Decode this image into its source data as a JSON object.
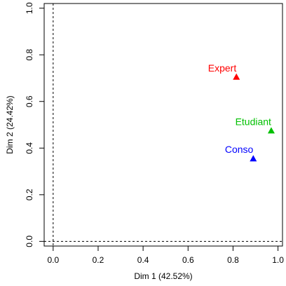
{
  "chart_data": {
    "type": "scatter",
    "title": "",
    "xlabel": "Dim 1 (42.52%)",
    "ylabel": "Dim 2 (24.42%)",
    "xlim": [
      -0.04,
      1.02
    ],
    "ylim": [
      -0.02,
      1.02
    ],
    "xticks": [
      0.0,
      0.2,
      0.4,
      0.6,
      0.8,
      1.0
    ],
    "yticks": [
      0.0,
      0.2,
      0.4,
      0.6,
      0.8,
      1.0
    ],
    "reference_lines": {
      "x": 0,
      "y": 0,
      "style": "dashed"
    },
    "grid": false,
    "points": [
      {
        "label": "Expert",
        "x": 0.815,
        "y": 0.705,
        "color": "#ff0000",
        "marker": "triangle"
      },
      {
        "label": "Etudiant",
        "x": 0.97,
        "y": 0.475,
        "color": "#00c000",
        "marker": "triangle"
      },
      {
        "label": "Conso",
        "x": 0.89,
        "y": 0.355,
        "color": "#0000ff",
        "marker": "triangle"
      }
    ]
  }
}
